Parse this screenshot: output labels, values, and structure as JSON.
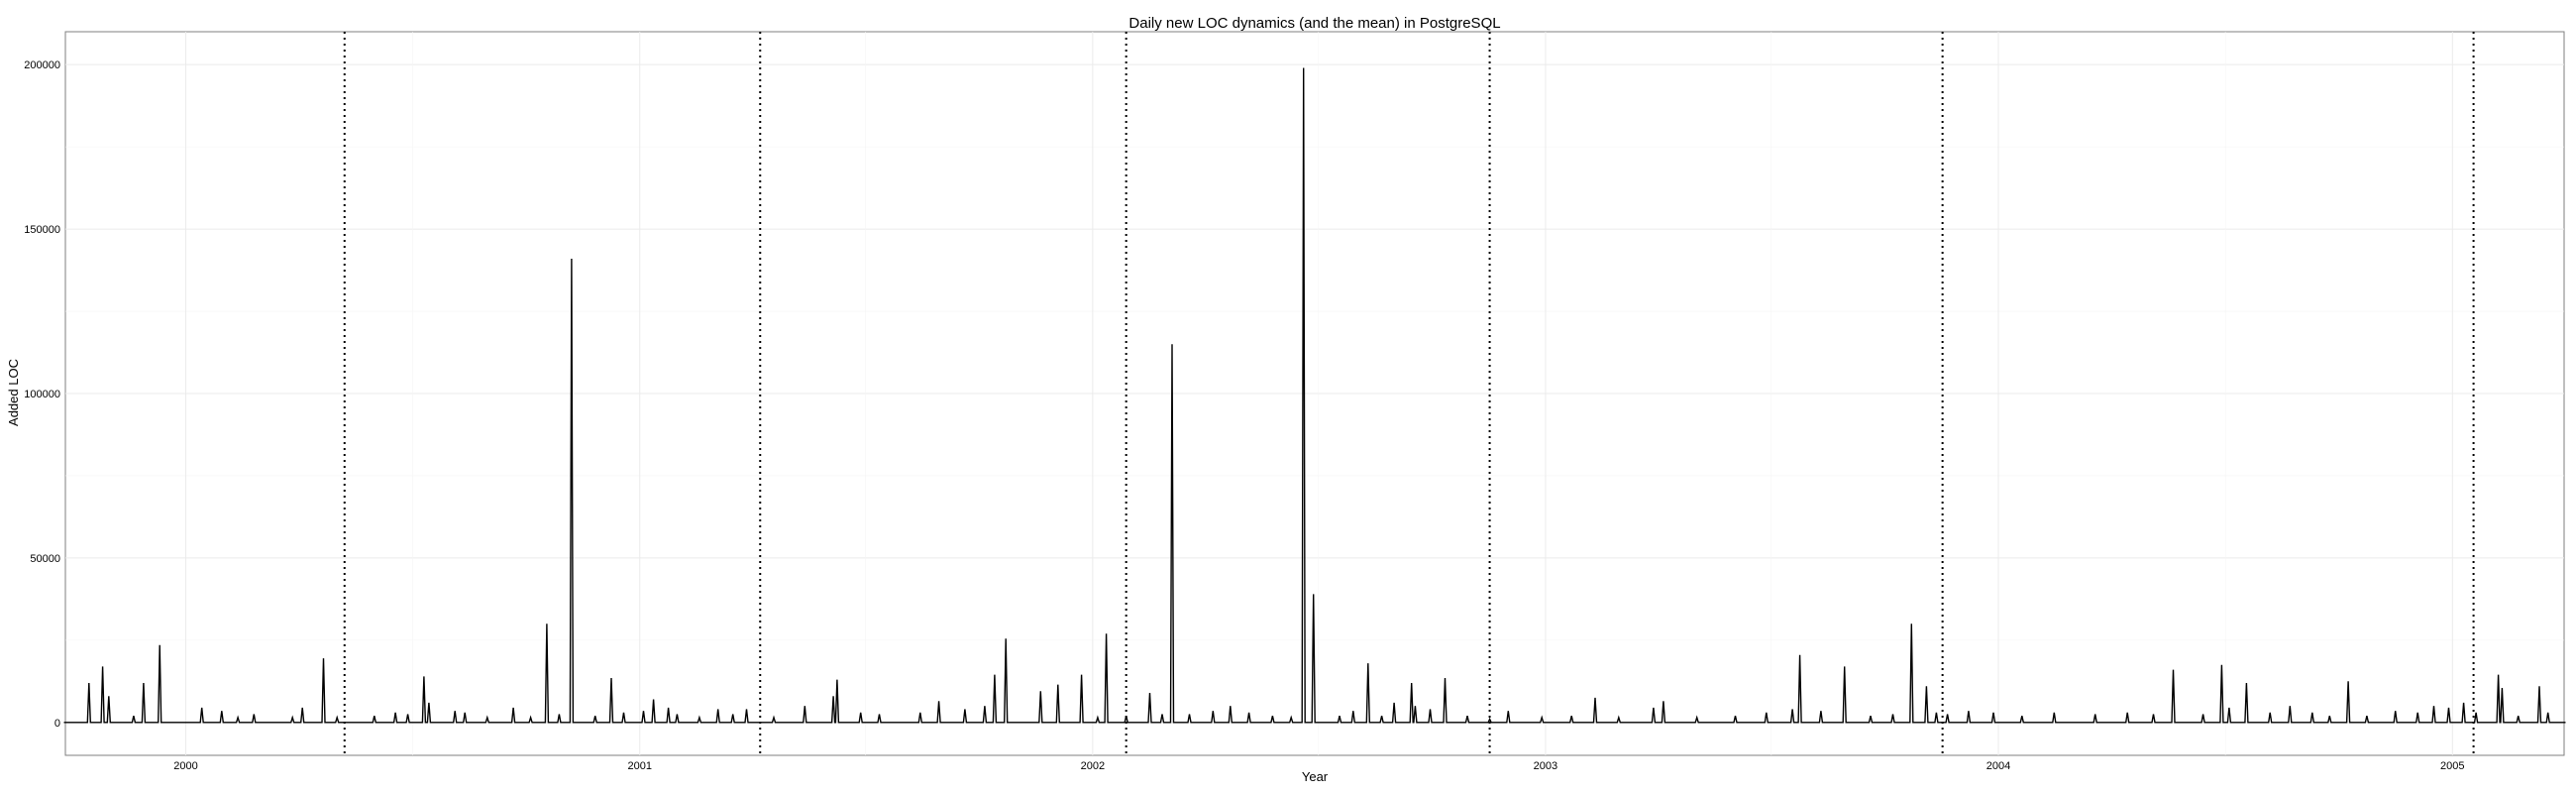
{
  "chart_data": {
    "type": "line",
    "title": "Daily new LOC dynamics (and the mean) in PostgreSQL",
    "xlabel": "Year",
    "ylabel": "Added LOC",
    "xlim": [
      "1999-09-26",
      "2005-04-01"
    ],
    "ylim": [
      -10000,
      210000
    ],
    "grid": true,
    "x_ticks": [
      {
        "date": "2000-01-01",
        "label": "2000"
      },
      {
        "date": "2001-01-01",
        "label": "2001"
      },
      {
        "date": "2002-01-01",
        "label": "2002"
      },
      {
        "date": "2003-01-01",
        "label": "2003"
      },
      {
        "date": "2004-01-01",
        "label": "2004"
      },
      {
        "date": "2005-01-01",
        "label": "2005"
      }
    ],
    "y_ticks": [
      0,
      50000,
      100000,
      150000,
      200000
    ],
    "y_tick_labels": [
      "0",
      "50000",
      "100000",
      "150000",
      "200000"
    ],
    "mean_lines": [
      "2000-05-08",
      "2001-04-08",
      "2002-01-28",
      "2002-11-17",
      "2003-11-17",
      "2005-01-18"
    ],
    "series": [
      {
        "color": "#000000",
        "points": [
          [
            "1999-09-26",
            0
          ],
          [
            "1999-10-15",
            12000
          ],
          [
            "1999-10-26",
            17000
          ],
          [
            "1999-10-31",
            8000
          ],
          [
            "1999-11-20",
            2000
          ],
          [
            "1999-11-28",
            12000
          ],
          [
            "1999-12-11",
            23500
          ],
          [
            "2000-01-14",
            4500
          ],
          [
            "2000-01-30",
            3500
          ],
          [
            "2000-02-12",
            1500
          ],
          [
            "2000-02-25",
            2500
          ],
          [
            "2000-03-27",
            1500
          ],
          [
            "2000-04-04",
            4500
          ],
          [
            "2000-04-21",
            19500
          ],
          [
            "2000-05-02",
            1500
          ],
          [
            "2000-06-01",
            2000
          ],
          [
            "2000-06-18",
            3000
          ],
          [
            "2000-06-28",
            2500
          ],
          [
            "2000-07-11",
            14000
          ],
          [
            "2000-07-15",
            6000
          ],
          [
            "2000-08-05",
            3500
          ],
          [
            "2000-08-13",
            3000
          ],
          [
            "2000-08-31",
            1500
          ],
          [
            "2000-09-21",
            4500
          ],
          [
            "2000-10-05",
            1500
          ],
          [
            "2000-10-18",
            30000
          ],
          [
            "2000-10-28",
            2500
          ],
          [
            "2000-11-07",
            141000
          ],
          [
            "2000-11-26",
            2000
          ],
          [
            "2000-12-09",
            13500
          ],
          [
            "2000-12-19",
            3000
          ],
          [
            "2001-01-04",
            3500
          ],
          [
            "2001-01-12",
            7000
          ],
          [
            "2001-01-24",
            4500
          ],
          [
            "2001-01-31",
            2500
          ],
          [
            "2001-02-18",
            1500
          ],
          [
            "2001-03-05",
            4000
          ],
          [
            "2001-03-17",
            2500
          ],
          [
            "2001-03-28",
            4000
          ],
          [
            "2001-04-19",
            1500
          ],
          [
            "2001-05-14",
            5000
          ],
          [
            "2001-06-06",
            8000
          ],
          [
            "2001-06-09",
            13000
          ],
          [
            "2001-06-28",
            3000
          ],
          [
            "2001-07-13",
            2500
          ],
          [
            "2001-08-15",
            3000
          ],
          [
            "2001-08-30",
            6500
          ],
          [
            "2001-09-20",
            4000
          ],
          [
            "2001-10-06",
            5000
          ],
          [
            "2001-10-14",
            14500
          ],
          [
            "2001-10-23",
            25500
          ],
          [
            "2001-11-20",
            9500
          ],
          [
            "2001-12-04",
            11500
          ],
          [
            "2001-12-23",
            14500
          ],
          [
            "2002-01-05",
            1500
          ],
          [
            "2002-01-12",
            27000
          ],
          [
            "2002-01-28",
            2000
          ],
          [
            "2002-02-16",
            9000
          ],
          [
            "2002-02-26",
            2500
          ],
          [
            "2002-03-06",
            115000
          ],
          [
            "2002-03-20",
            2500
          ],
          [
            "2002-04-08",
            3500
          ],
          [
            "2002-04-22",
            5000
          ],
          [
            "2002-05-07",
            3000
          ],
          [
            "2002-05-26",
            2000
          ],
          [
            "2002-06-10",
            1500
          ],
          [
            "2002-06-20",
            199000
          ],
          [
            "2002-06-28",
            39000
          ],
          [
            "2002-07-19",
            2000
          ],
          [
            "2002-07-30",
            3500
          ],
          [
            "2002-08-11",
            18000
          ],
          [
            "2002-08-22",
            2000
          ],
          [
            "2002-09-01",
            6000
          ],
          [
            "2002-09-15",
            12000
          ],
          [
            "2002-09-18",
            5000
          ],
          [
            "2002-09-30",
            4000
          ],
          [
            "2002-10-12",
            13500
          ],
          [
            "2002-10-30",
            2000
          ],
          [
            "2002-11-17",
            1000
          ],
          [
            "2002-12-02",
            3500
          ],
          [
            "2002-12-29",
            1500
          ],
          [
            "2003-01-22",
            2000
          ],
          [
            "2003-02-10",
            7500
          ],
          [
            "2003-03-01",
            1500
          ],
          [
            "2003-03-29",
            4500
          ],
          [
            "2003-04-06",
            6500
          ],
          [
            "2003-05-03",
            1500
          ],
          [
            "2003-06-03",
            2000
          ],
          [
            "2003-06-28",
            3000
          ],
          [
            "2003-07-19",
            4000
          ],
          [
            "2003-07-25",
            20500
          ],
          [
            "2003-08-11",
            3500
          ],
          [
            "2003-08-30",
            17000
          ],
          [
            "2003-09-20",
            2000
          ],
          [
            "2003-10-08",
            2500
          ],
          [
            "2003-10-23",
            30000
          ],
          [
            "2003-11-04",
            11000
          ],
          [
            "2003-11-12",
            3000
          ],
          [
            "2003-11-21",
            2500
          ],
          [
            "2003-12-08",
            3500
          ],
          [
            "2003-12-28",
            3000
          ],
          [
            "2004-01-20",
            2000
          ],
          [
            "2004-02-15",
            3000
          ],
          [
            "2004-03-19",
            2500
          ],
          [
            "2004-04-14",
            3000
          ],
          [
            "2004-05-05",
            2500
          ],
          [
            "2004-05-21",
            16000
          ],
          [
            "2004-06-14",
            2500
          ],
          [
            "2004-06-29",
            17500
          ],
          [
            "2004-07-05",
            4500
          ],
          [
            "2004-07-19",
            12000
          ],
          [
            "2004-08-07",
            3000
          ],
          [
            "2004-08-23",
            5000
          ],
          [
            "2004-09-10",
            3000
          ],
          [
            "2004-09-24",
            2000
          ],
          [
            "2004-10-09",
            12500
          ],
          [
            "2004-10-24",
            2000
          ],
          [
            "2004-11-16",
            3500
          ],
          [
            "2004-12-04",
            3000
          ],
          [
            "2004-12-17",
            5000
          ],
          [
            "2004-12-29",
            4500
          ],
          [
            "2005-01-10",
            6000
          ],
          [
            "2005-01-20",
            3000
          ],
          [
            "2005-02-07",
            14500
          ],
          [
            "2005-02-10",
            10500
          ],
          [
            "2005-02-23",
            2000
          ],
          [
            "2005-03-12",
            11000
          ],
          [
            "2005-03-19",
            3000
          ],
          [
            "2005-04-01",
            0
          ]
        ]
      }
    ]
  }
}
